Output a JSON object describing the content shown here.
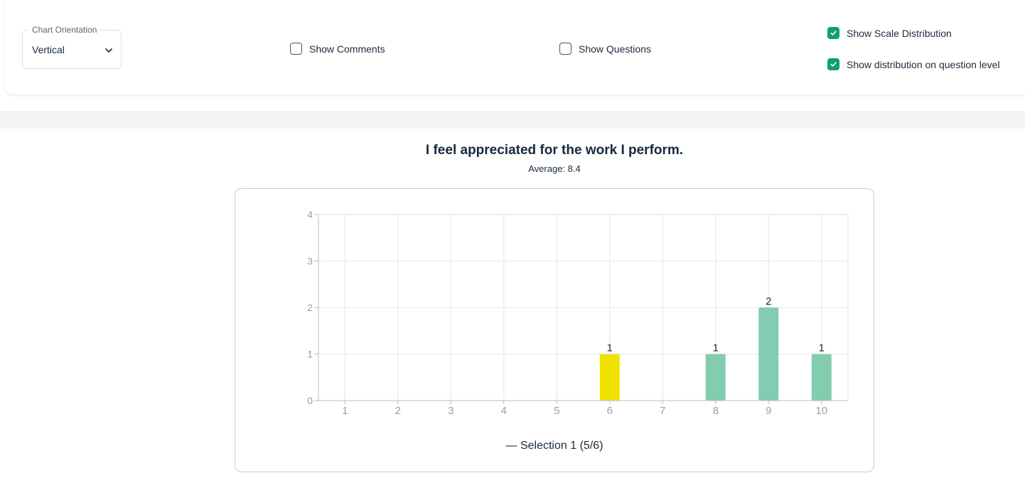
{
  "filters": {
    "chart_orientation": {
      "label": "Chart Orientation",
      "value": "Vertical"
    },
    "show_comments": {
      "label": "Show Comments",
      "checked": false
    },
    "show_questions": {
      "label": "Show Questions",
      "checked": false
    },
    "show_scale_distribution": {
      "label": "Show Scale Distribution",
      "checked": true
    },
    "show_distribution_question_level": {
      "label": "Show distribution on question level",
      "checked": true
    }
  },
  "question": {
    "title": "I feel appreciated for the work I perform.",
    "average": "Average: 8.4"
  },
  "colors": {
    "accent": "#0e9f6e",
    "bar_green": "#84ccb0",
    "bar_yellow": "#f2e200"
  },
  "chart_data": {
    "type": "bar",
    "categories": [
      "1",
      "2",
      "3",
      "4",
      "5",
      "6",
      "7",
      "8",
      "9",
      "10"
    ],
    "series": [
      {
        "name": "Selection 1 (5/6)",
        "values": [
          0,
          0,
          0,
          0,
          0,
          1,
          0,
          1,
          2,
          1
        ]
      }
    ],
    "bar_colors": [
      "#84ccb0",
      "#84ccb0",
      "#84ccb0",
      "#84ccb0",
      "#84ccb0",
      "#f2e200",
      "#84ccb0",
      "#84ccb0",
      "#84ccb0",
      "#84ccb0"
    ],
    "ylim": [
      0,
      4
    ],
    "yticks": [
      "0",
      "1",
      "2",
      "3",
      "4"
    ],
    "data_labels": [
      "",
      "",
      "",
      "",
      "",
      "1",
      "",
      "1",
      "2",
      "1"
    ],
    "grid": true,
    "legend": {
      "position": "bottom-center",
      "text": "— Selection 1 (5/6)"
    }
  }
}
